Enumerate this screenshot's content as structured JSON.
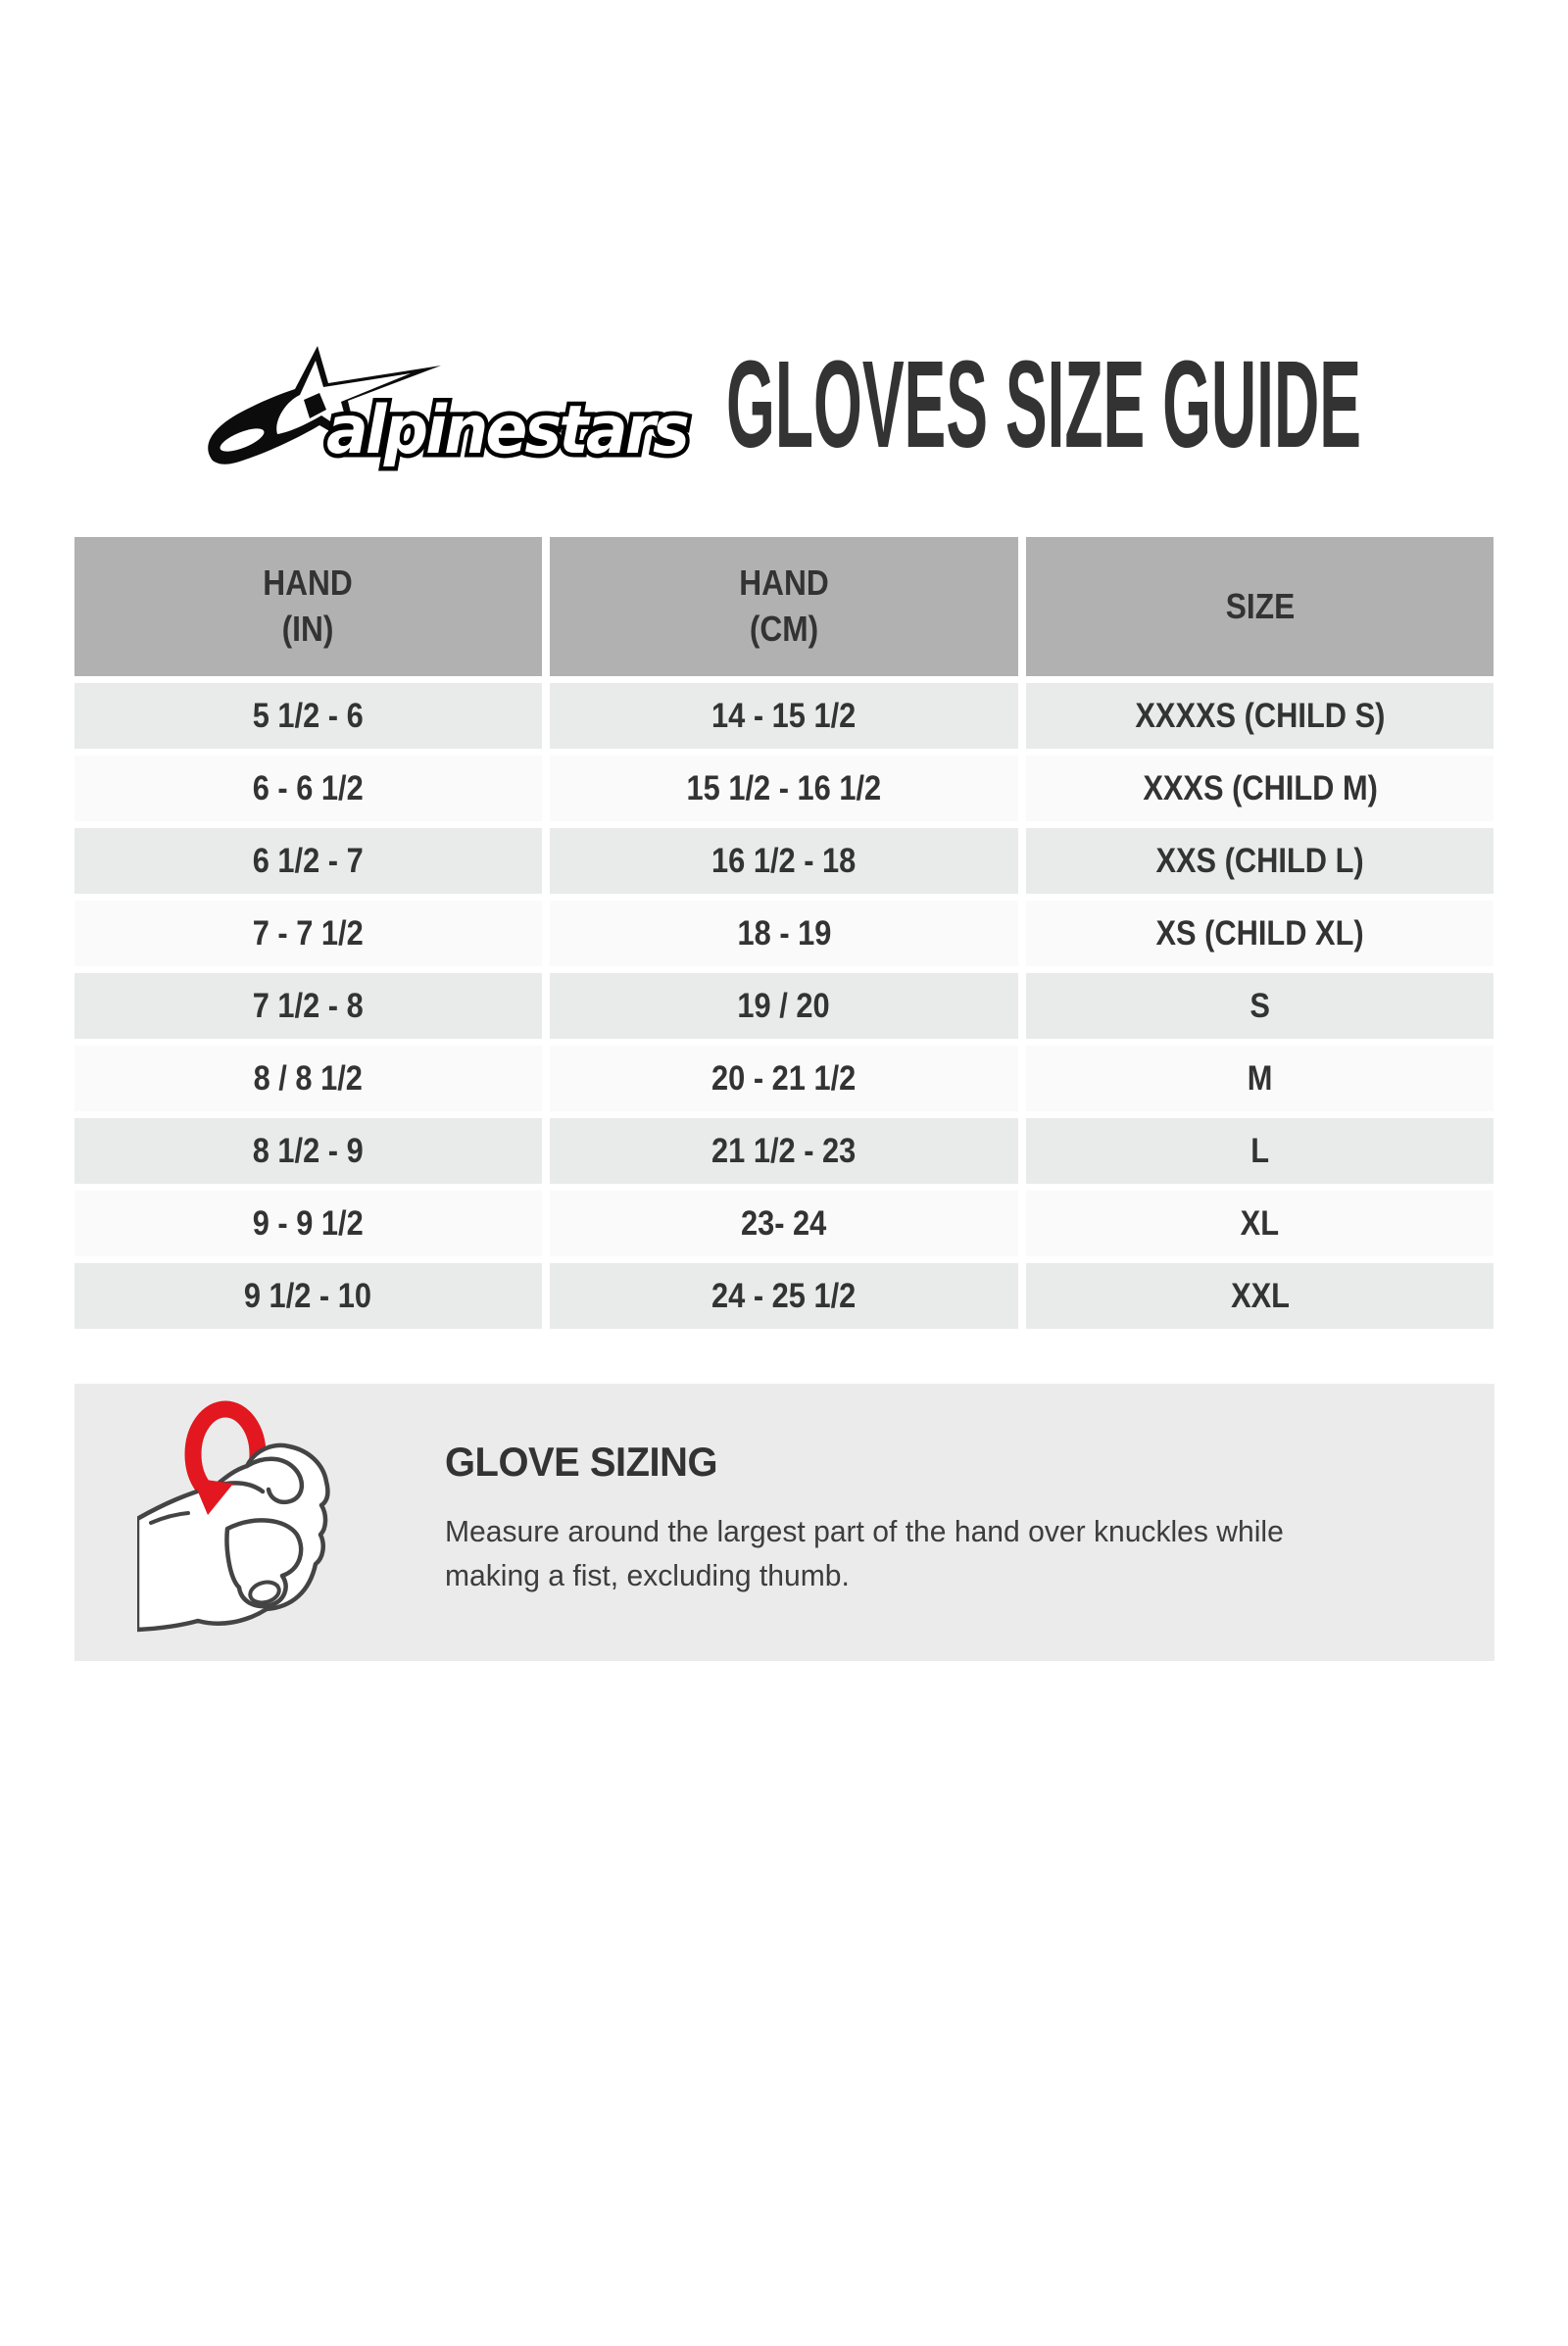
{
  "header": {
    "brand": "alpinestars",
    "title": "GLOVES SIZE GUIDE"
  },
  "table": {
    "columns": [
      {
        "line1": "HAND",
        "line2": "(IN)"
      },
      {
        "line1": "HAND",
        "line2": "(CM)"
      },
      {
        "line1": "SIZE",
        "line2": ""
      }
    ],
    "rows": [
      {
        "hand_in": "5 1/2 - 6",
        "hand_cm": "14 - 15 1/2",
        "size": "XXXXS (CHILD S)"
      },
      {
        "hand_in": "6 - 6 1/2",
        "hand_cm": "15 1/2 - 16 1/2",
        "size": "XXXS (CHILD M)"
      },
      {
        "hand_in": "6 1/2 - 7",
        "hand_cm": "16 1/2 - 18",
        "size": "XXS (CHILD L)"
      },
      {
        "hand_in": "7 - 7 1/2",
        "hand_cm": "18 - 19",
        "size": "XS (CHILD XL)"
      },
      {
        "hand_in": "7 1/2 - 8",
        "hand_cm": "19 / 20",
        "size": "S"
      },
      {
        "hand_in": "8 / 8 1/2",
        "hand_cm": "20 - 21 1/2",
        "size": "M"
      },
      {
        "hand_in": "8 1/2 - 9",
        "hand_cm": "21 1/2 - 23",
        "size": "L"
      },
      {
        "hand_in": "9 - 9 1/2",
        "hand_cm": "23- 24",
        "size": "XL"
      },
      {
        "hand_in": "9 1/2 - 10",
        "hand_cm": "24 - 25 1/2",
        "size": "XXL"
      }
    ]
  },
  "info": {
    "heading": "GLOVE SIZING",
    "body_line1": "Measure around the largest part of the hand over knuckles while",
    "body_line2": "making a fist, excluding thumb."
  },
  "icons": {
    "logo": "alpinestars-star-logo",
    "illustration": "fist-with-measuring-tape"
  },
  "colors": {
    "accent_red": "#e2171f",
    "header_gray": "#b1b1b1",
    "row_gray": "#e9eaea",
    "row_white": "#fafafa",
    "info_box_gray": "#ebebeb",
    "text_dark": "#333333"
  }
}
